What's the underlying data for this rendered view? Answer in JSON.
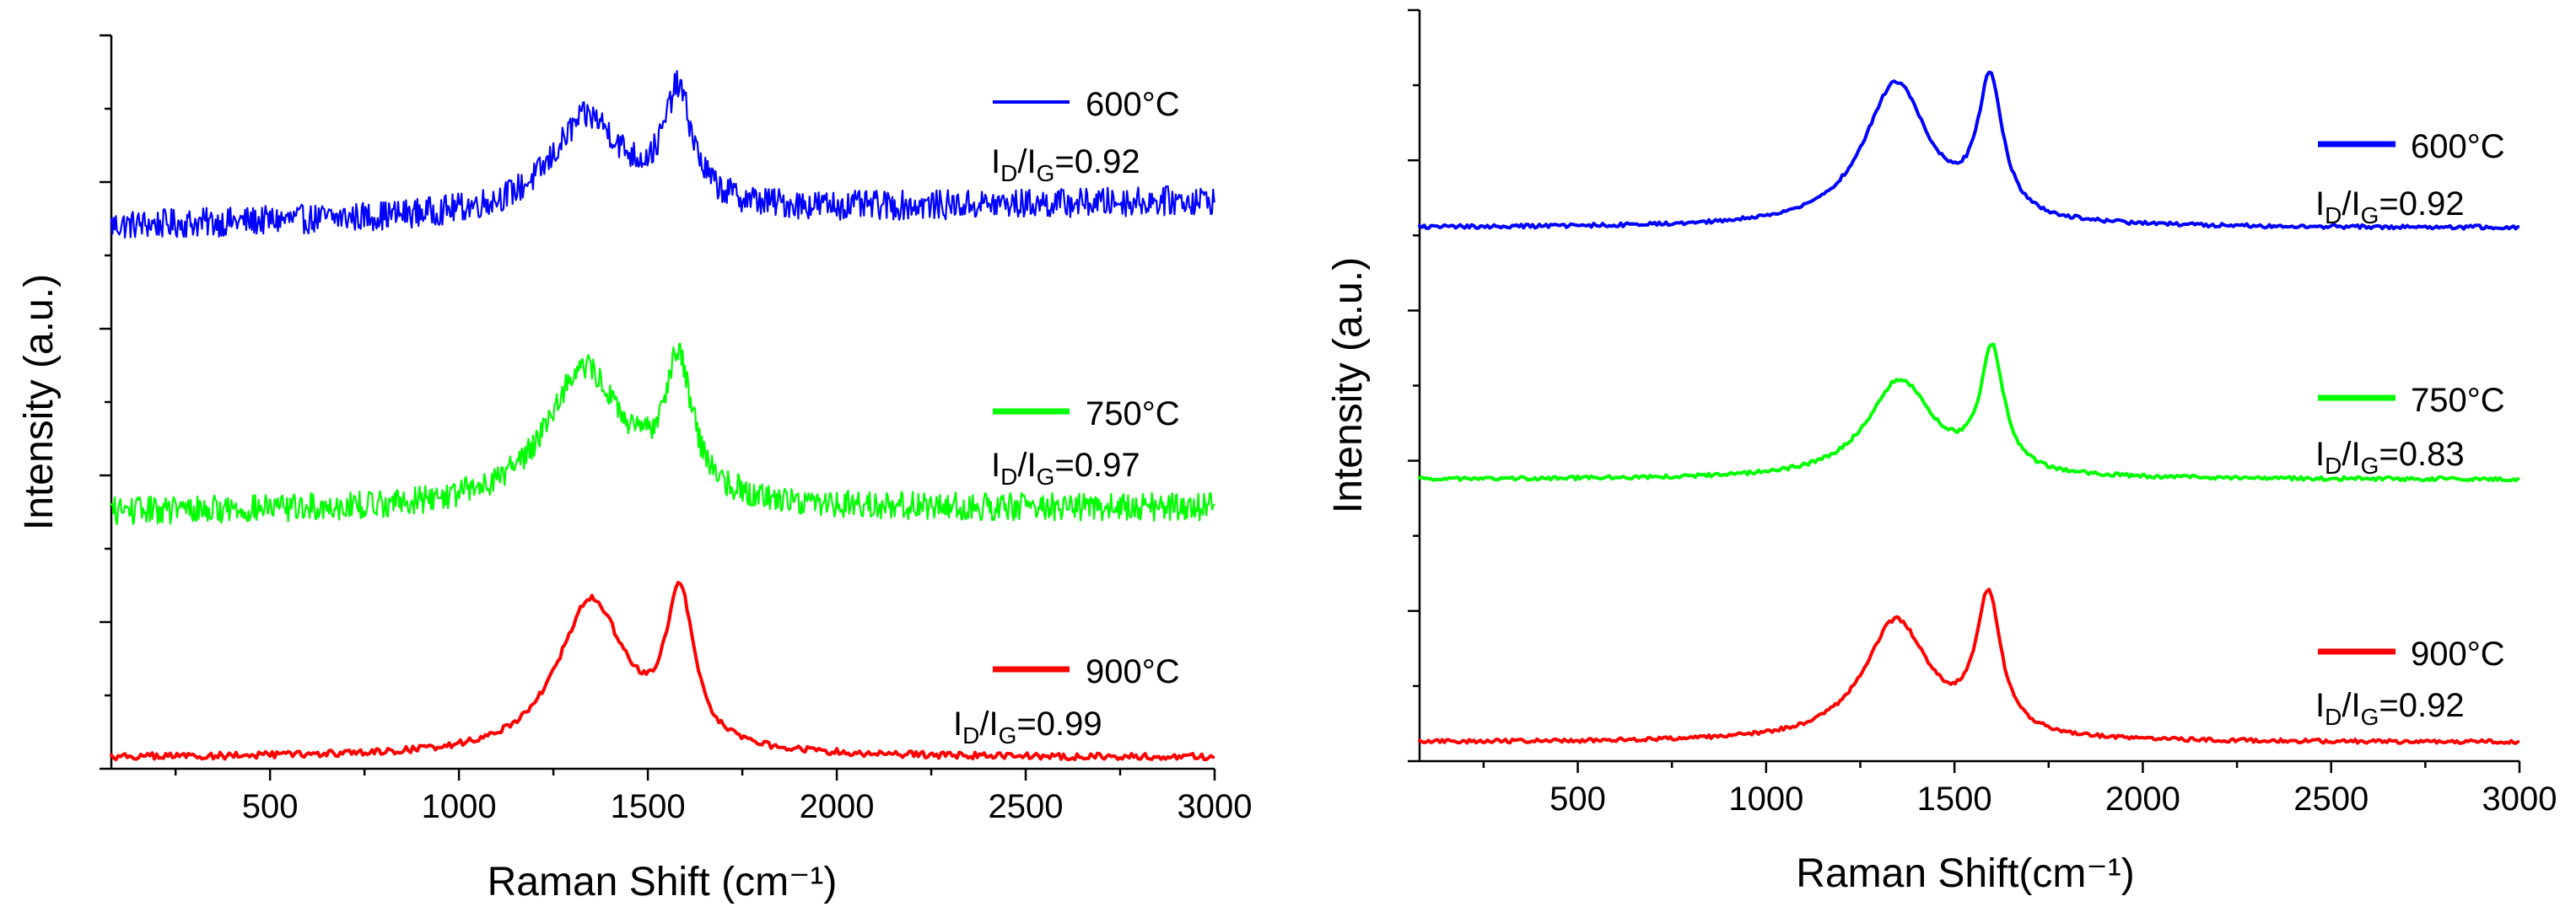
{
  "chart_data": [
    {
      "type": "line",
      "xlabel": "Raman Shift",
      "xlabel_unit": "(cm⁻¹)",
      "ylabel": "Intensity (a.u.)",
      "xlim": [
        80,
        3000
      ],
      "ylim": [
        0,
        100
      ],
      "xticks": [
        500,
        1000,
        1500,
        2000,
        2500,
        3000
      ],
      "ytick_count": 5,
      "series": [
        {
          "name": "600°C",
          "color": "#0000ff",
          "noise": 2.0,
          "baseline": 74,
          "slope": 0.0012,
          "peaks": [
            {
              "center": 1340,
              "height": 13,
              "width": 115
            },
            {
              "center": 1580,
              "height": 15,
              "width": 45
            }
          ],
          "ratio_label": "I",
          "ratio_sub1": "D",
          "ratio_sep": "/I",
          "ratio_sub2": "G",
          "ratio_value": "=0.92"
        },
        {
          "name": "750°C",
          "color": "#00ff00",
          "noise": 1.9,
          "baseline": 35,
          "slope": 0.0002,
          "peaks": [
            {
              "center": 1330,
              "height": 19,
              "width": 125
            },
            {
              "center": 1580,
              "height": 18,
              "width": 45
            }
          ],
          "ratio_label": "I",
          "ratio_sub1": "D",
          "ratio_sep": "/I",
          "ratio_sub2": "G",
          "ratio_value": "=0.97"
        },
        {
          "name": "900°C",
          "color": "#ff0000",
          "noise": 0.45,
          "baseline": 1.5,
          "slope": 0.0,
          "peaks": [
            {
              "center": 1350,
              "height": 21,
              "width": 110
            },
            {
              "center": 1585,
              "height": 20,
              "width": 45
            }
          ],
          "ratio_label": "I",
          "ratio_sub1": "D",
          "ratio_sep": "/I",
          "ratio_sub2": "G",
          "ratio_value": "=0.99"
        }
      ]
    },
    {
      "type": "line",
      "xlabel": "Raman Shift",
      "xlabel_unit": "(cm⁻¹)",
      "ylabel": "Intensity (a.u.)",
      "xlim": [
        80,
        3000
      ],
      "ylim": [
        0,
        100
      ],
      "xticks": [
        500,
        1000,
        1500,
        2000,
        2500,
        3000
      ],
      "ytick_count": 5,
      "series": [
        {
          "name": "600°C",
          "color": "#0000ff",
          "noise": 0.25,
          "baseline": 71,
          "slope": 0.0,
          "peaks": [
            {
              "center": 1345,
              "height": 19,
              "width": 105
            },
            {
              "center": 1595,
              "height": 18,
              "width": 40
            }
          ],
          "ratio_label": "I",
          "ratio_sub1": "D",
          "ratio_sep": "/I",
          "ratio_sub2": "G",
          "ratio_value": "=0.92"
        },
        {
          "name": "750°C",
          "color": "#00ff00",
          "noise": 0.25,
          "baseline": 37.5,
          "slope": 0.0,
          "peaks": [
            {
              "center": 1355,
              "height": 13,
              "width": 105
            },
            {
              "center": 1600,
              "height": 16,
              "width": 38
            }
          ],
          "ratio_label": "I",
          "ratio_sub1": "D",
          "ratio_sep": "/I",
          "ratio_sub2": "G",
          "ratio_value": "=0.83"
        },
        {
          "name": "900°C",
          "color": "#ff0000",
          "noise": 0.25,
          "baseline": 2.5,
          "slope": 0.0,
          "peaks": [
            {
              "center": 1345,
              "height": 16,
              "width": 105
            },
            {
              "center": 1590,
              "height": 18,
              "width": 40
            }
          ],
          "ratio_label": "I",
          "ratio_sub1": "D",
          "ratio_sep": "/I",
          "ratio_sub2": "G",
          "ratio_value": "=0.92"
        }
      ]
    }
  ]
}
